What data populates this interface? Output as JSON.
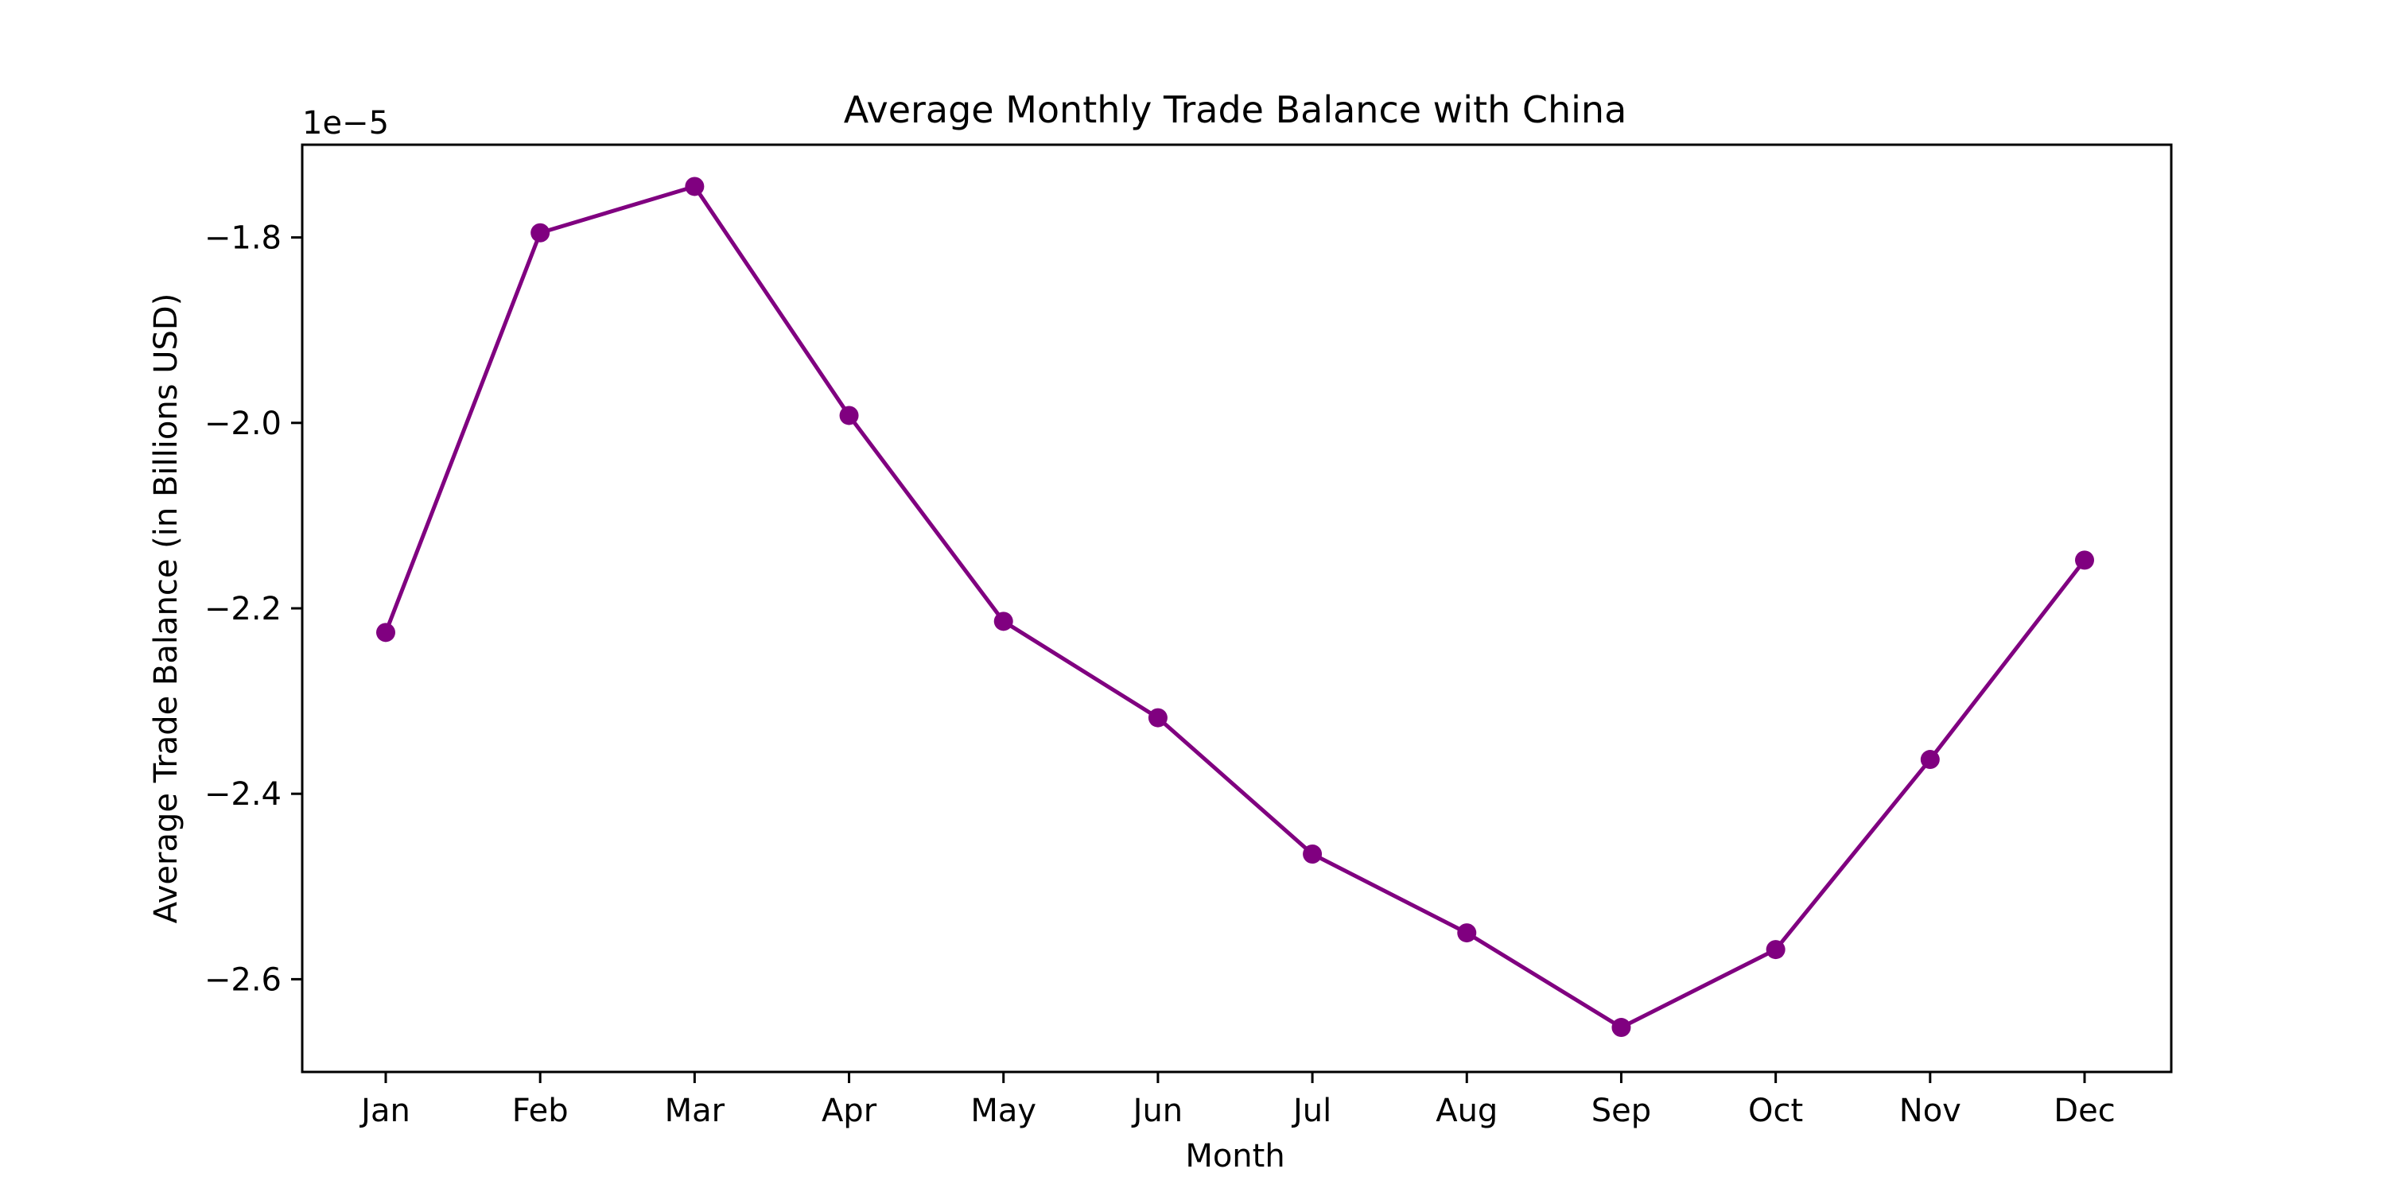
{
  "chart_data": {
    "type": "line",
    "title": "Average Monthly Trade Balance with China",
    "xlabel": "Month",
    "ylabel": "Average Trade Balance (in Billions USD)",
    "y_offset_label": "1e−5",
    "categories": [
      "Jan",
      "Feb",
      "Mar",
      "Apr",
      "May",
      "Jun",
      "Jul",
      "Aug",
      "Sep",
      "Oct",
      "Nov",
      "Dec"
    ],
    "series": [
      {
        "values": [
          -2.226,
          -1.795,
          -1.745,
          -1.992,
          -2.214,
          -2.318,
          -2.465,
          -2.55,
          -2.652,
          -2.568,
          -2.363,
          -2.148
        ],
        "color": "#800080",
        "marker": "circle"
      }
    ],
    "y_scale_factor": "1e-5",
    "ylim": [
      -2.7,
      -1.7
    ],
    "yticks": [
      -2.6,
      -2.4,
      -2.2,
      -2.0,
      -1.8
    ],
    "ytick_labels": [
      "−2.6",
      "−2.4",
      "−2.2",
      "−2.0",
      "−1.8"
    ],
    "grid": false,
    "legend": "none"
  }
}
